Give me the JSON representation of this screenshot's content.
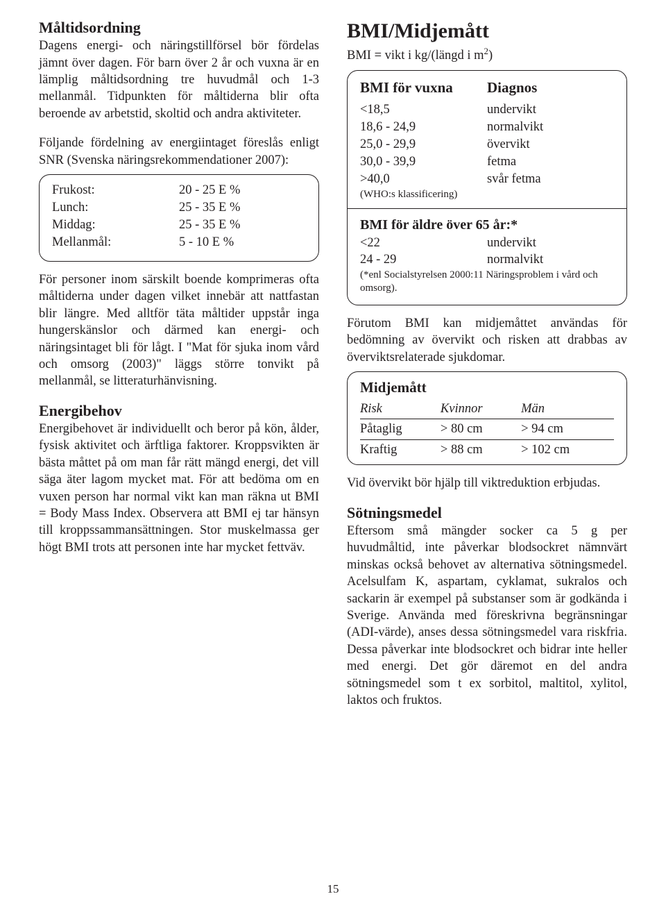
{
  "pageNumber": "15",
  "left": {
    "h_maltid": "Måltidsordning",
    "p_maltid": "Dagens energi- och näringstillförsel bör fördelas jämnt över dagen. För barn över 2 år och vuxna är en lämplig måltidsordning tre huvudmål och 1-3 mellanmål. Tidpunkten för måltiderna blir ofta beroende av arbetstid, skoltid och andra aktiviteter.",
    "p_snr": "Följande fördelning av energiintaget föreslås enligt SNR (Svenska näringsrekommendationer 2007):",
    "mealbox": {
      "rows": [
        {
          "meal": "Frukost:",
          "value": "20 - 25 E %"
        },
        {
          "meal": "Lunch:",
          "value": "25 - 35 E %"
        },
        {
          "meal": "Middag:",
          "value": "25 - 35 E %"
        },
        {
          "meal": "Mellanmål:",
          "value": "5 - 10 E %"
        }
      ]
    },
    "p_boende": "För personer inom särskilt boende komprimeras ofta måltiderna under dagen vilket innebär att nattfastan blir längre. Med alltför täta måltider uppstår inga hungerskänslor och därmed kan energi- och näringsintaget bli för lågt. I \"Mat för sjuka inom vård och omsorg (2003)\" läggs större tonvikt på mellanmål, se litteraturhänvisning.",
    "h_energi": "Energibehov",
    "p_energi": "Energibehovet är individuellt och beror på kön, ålder, fysisk aktivitet och ärftliga faktorer. Kroppsvikten är bästa måttet på om man får rätt mängd energi, det vill säga äter lagom mycket mat. För att bedöma om en vuxen person har normal vikt kan man räkna ut BMI = Body Mass Index. Observera att BMI ej tar hänsyn till kroppssammansättningen. Stor muskelmassa ger högt BMI trots att personen inte har mycket fettväv."
  },
  "right": {
    "h_bmi": "BMI/Midjemått",
    "formula_pre": "BMI = vikt i kg/(längd i m",
    "formula_sup": "2",
    "formula_post": ")",
    "bmibox": {
      "header_left": "BMI för vuxna",
      "header_right": "Diagnos",
      "rows_adult": [
        {
          "range": "<18,5",
          "diag": "undervikt"
        },
        {
          "range": "18,6 - 24,9",
          "diag": "normalvikt"
        },
        {
          "range": "25,0 - 29,9",
          "diag": "övervikt"
        },
        {
          "range": "30,0 - 39,9",
          "diag": "fetma"
        },
        {
          "range": ">40,0",
          "diag": "svår fetma"
        }
      ],
      "who_note": "(WHO:s klassificering)",
      "header_elder": "BMI för äldre över 65 år:*",
      "rows_elder": [
        {
          "range": "<22",
          "diag": "undervikt"
        },
        {
          "range": "24 - 29",
          "diag": "normalvikt"
        }
      ],
      "elder_note": "(*enl Socialstyrelsen 2000:11 Näringsproblem i vård och omsorg)."
    },
    "p_midje": "Förutom BMI kan midjemåttet användas för bedömning av övervikt och risken att drabbas av överviktsrelaterade sjukdomar.",
    "midjebox": {
      "title": "Midjemått",
      "col_risk": "Risk",
      "col_kvinnor": "Kvinnor",
      "col_man": "Män",
      "rows": [
        {
          "risk": "Påtaglig",
          "kvinnor": "> 80 cm",
          "man": "> 94 cm"
        },
        {
          "risk": "Kraftig",
          "kvinnor": "> 88 cm",
          "man": "> 102 cm"
        }
      ]
    },
    "p_overvikt": "Vid övervikt bör hjälp till viktreduktion erbjudas.",
    "h_sotning": "Sötningsmedel",
    "p_sotning": "Eftersom små mängder socker ca 5 g per huvudmåltid, inte påverkar blodsockret nämnvärt minskas också behovet av alternativa sötningsmedel. Acelsulfam K, aspartam, cyklamat, sukralos och sackarin är exempel på substanser som är godkända i Sverige. Använda med föreskrivna begränsningar (ADI-värde), anses dessa sötningsmedel vara riskfria. Dessa påverkar inte blodsockret och bidrar inte heller med energi. Det gör däremot en del andra sötningsmedel som t ex sorbitol, maltitol, xylitol, laktos och fruktos."
  }
}
